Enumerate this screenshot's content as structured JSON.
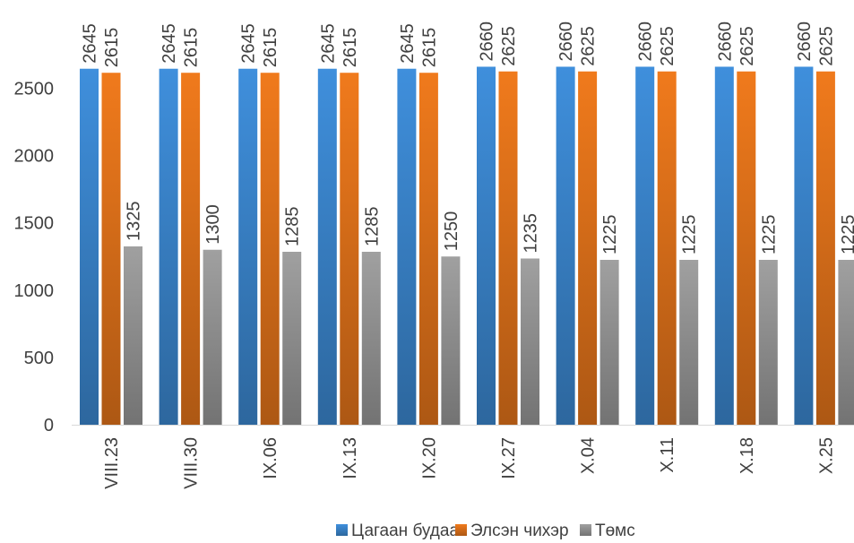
{
  "chart_data": {
    "type": "bar",
    "categories": [
      "VIII.23",
      "VIII.30",
      "IX.06",
      "IX.13",
      "IX.20",
      "IX.27",
      "X.04",
      "X.11",
      "X.18",
      "X.25"
    ],
    "series": [
      {
        "name": "Цагаан будаа",
        "values": [
          2645,
          2645,
          2645,
          2645,
          2645,
          2660,
          2660,
          2660,
          2660,
          2660
        ],
        "color": "#3f8fdc"
      },
      {
        "name": "Элсэн чихэр",
        "values": [
          2615,
          2615,
          2615,
          2615,
          2615,
          2625,
          2625,
          2625,
          2625,
          2625
        ],
        "color": "#f07a1c"
      },
      {
        "name": "Төмс",
        "values": [
          1325,
          1300,
          1285,
          1285,
          1250,
          1235,
          1225,
          1225,
          1225,
          1225
        ],
        "color": "#a0a0a0"
      }
    ],
    "yticks": [
      0,
      500,
      1000,
      1500,
      2000,
      2500
    ],
    "ylim": [
      0,
      2500
    ],
    "grid": false,
    "legend_position": "bottom",
    "data_labels": true
  }
}
